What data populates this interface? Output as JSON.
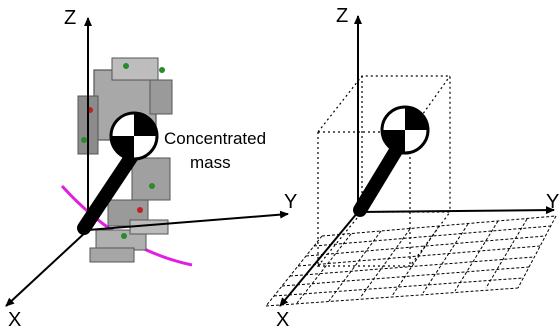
{
  "left_panel": {
    "axes": {
      "z": "Z",
      "y": "Y",
      "x": "X"
    },
    "callout": {
      "line1": "Concentrated",
      "line2": "mass"
    }
  },
  "right_panel": {
    "axes": {
      "z": "Z",
      "y": "Y",
      "x": "X"
    }
  },
  "colors": {
    "mass_dark": "#000000",
    "mass_light": "#ffffff",
    "trajectory": "#e020e0",
    "robot_gray": "#9a9a9a",
    "robot_dark": "#666666"
  }
}
